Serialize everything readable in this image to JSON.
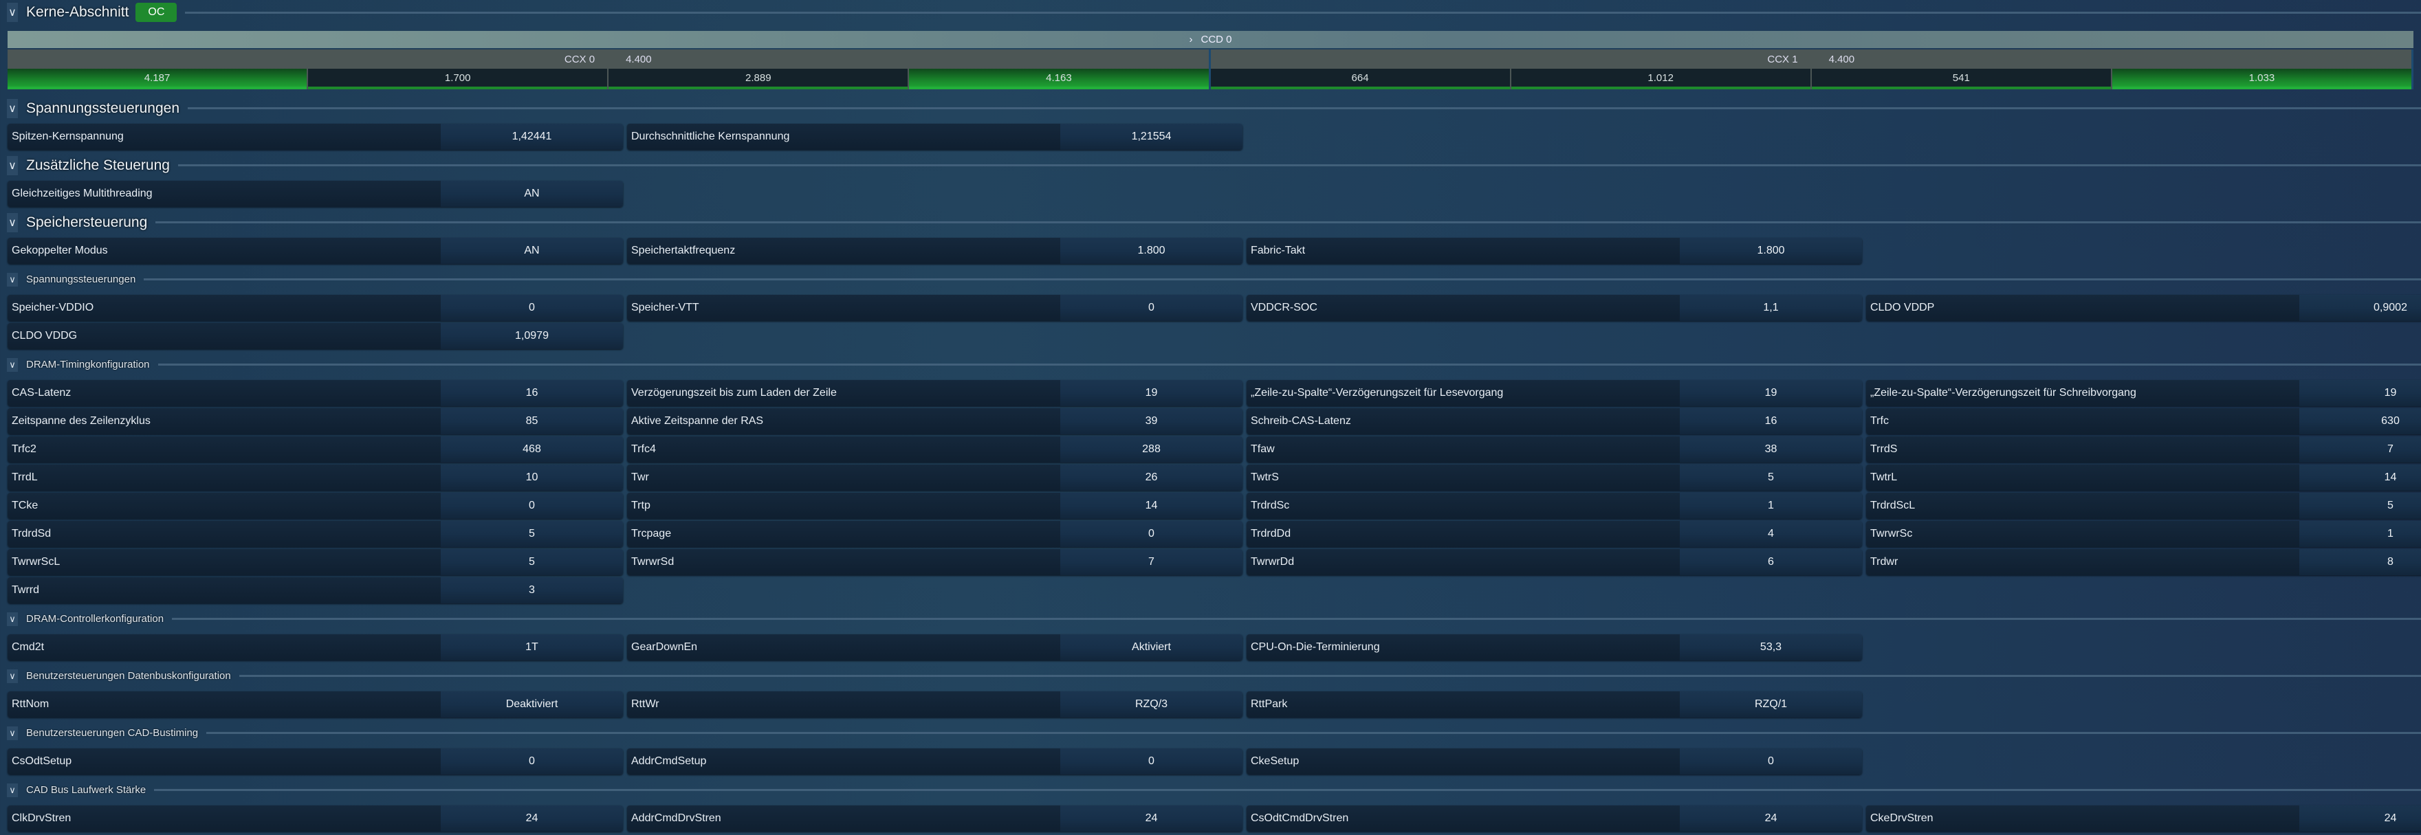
{
  "kerne": {
    "title": "Kerne-Abschnitt",
    "badge": "OC",
    "ccd": {
      "label": "CCD 0"
    },
    "ccx": [
      {
        "label": "CCX 0",
        "freq": "4.400",
        "cores": [
          {
            "value": "4.187",
            "highlight": true
          },
          {
            "value": "1.700",
            "highlight": false
          },
          {
            "value": "2.889",
            "highlight": false
          },
          {
            "value": "4.163",
            "highlight": true
          }
        ]
      },
      {
        "label": "CCX 1",
        "freq": "4.400",
        "cores": [
          {
            "value": "664",
            "highlight": false
          },
          {
            "value": "1.012",
            "highlight": false
          },
          {
            "value": "541",
            "highlight": false
          },
          {
            "value": "1.033",
            "highlight": true
          }
        ]
      }
    ]
  },
  "colors": {
    "accent_green": "#1f8a2e",
    "background": "#1f3d5a"
  },
  "sections": [
    {
      "title": "Spannungssteuerungen",
      "size": "big",
      "cells": [
        [
          "Spitzen-Kernspannung",
          "1,42441"
        ],
        [
          "Durchschnittliche Kernspannung",
          "1,21554"
        ]
      ]
    },
    {
      "title": "Zusätzliche Steuerung",
      "size": "big",
      "cells": [
        [
          "Gleichzeitiges Multithreading",
          "AN"
        ]
      ]
    },
    {
      "title": "Speichersteuerung",
      "size": "big",
      "cells": [
        [
          "Gekoppelter Modus",
          "AN"
        ],
        [
          "Speichertaktfrequenz",
          "1.800"
        ],
        [
          "Fabric-Takt",
          "1.800"
        ]
      ]
    },
    {
      "title": "Spannungssteuerungen",
      "size": "small",
      "cells": [
        [
          "Speicher-VDDIO",
          "0"
        ],
        [
          "Speicher-VTT",
          "0"
        ],
        [
          "VDDCR-SOC",
          "1,1"
        ],
        [
          "CLDO VDDP",
          "0,9002"
        ],
        [
          "CLDO VDDG",
          "1,0979"
        ]
      ]
    },
    {
      "title": "DRAM-Timingkonfiguration",
      "size": "small",
      "cells": [
        [
          "CAS-Latenz",
          "16"
        ],
        [
          "Verzögerungszeit bis zum Laden der Zeile",
          "19"
        ],
        [
          "„Zeile-zu-Spalte“-Verzögerungszeit für Lesevorgang",
          "19"
        ],
        [
          "„Zeile-zu-Spalte“-Verzögerungszeit für Schreibvorgang",
          "19"
        ],
        [
          "Zeitspanne des Zeilenzyklus",
          "85"
        ],
        [
          "Aktive Zeitspanne der RAS",
          "39"
        ],
        [
          "Schreib-CAS-Latenz",
          "16"
        ],
        [
          "Trfc",
          "630"
        ],
        [
          "Trfc2",
          "468"
        ],
        [
          "Trfc4",
          "288"
        ],
        [
          "Tfaw",
          "38"
        ],
        [
          "TrrdS",
          "7"
        ],
        [
          "TrrdL",
          "10"
        ],
        [
          "Twr",
          "26"
        ],
        [
          "TwtrS",
          "5"
        ],
        [
          "TwtrL",
          "14"
        ],
        [
          "TCke",
          "0"
        ],
        [
          "Trtp",
          "14"
        ],
        [
          "TrdrdSc",
          "1"
        ],
        [
          "TrdrdScL",
          "5"
        ],
        [
          "TrdrdSd",
          "5"
        ],
        [
          "Trcpage",
          "0"
        ],
        [
          "TrdrdDd",
          "4"
        ],
        [
          "TwrwrSc",
          "1"
        ],
        [
          "TwrwrScL",
          "5"
        ],
        [
          "TwrwrSd",
          "7"
        ],
        [
          "TwrwrDd",
          "6"
        ],
        [
          "Trdwr",
          "8"
        ],
        [
          "Twrrd",
          "3"
        ]
      ]
    },
    {
      "title": "DRAM-Controllerkonfiguration",
      "size": "small",
      "cells": [
        [
          "Cmd2t",
          "1T"
        ],
        [
          "GearDownEn",
          "Aktiviert"
        ],
        [
          "CPU-On-Die-Terminierung",
          "53,3"
        ]
      ]
    },
    {
      "title": "Benutzersteuerungen Datenbuskonfiguration",
      "size": "small",
      "cells": [
        [
          "RttNom",
          "Deaktiviert"
        ],
        [
          "RttWr",
          "RZQ/3"
        ],
        [
          "RttPark",
          "RZQ/1"
        ]
      ]
    },
    {
      "title": "Benutzersteuerungen CAD-Bustiming",
      "size": "small",
      "cells": [
        [
          "CsOdtSetup",
          "0"
        ],
        [
          "AddrCmdSetup",
          "0"
        ],
        [
          "CkeSetup",
          "0"
        ]
      ]
    },
    {
      "title": "CAD Bus Laufwerk Stärke",
      "size": "small",
      "cells": [
        [
          "ClkDrvStren",
          "24"
        ],
        [
          "AddrCmdDrvStren",
          "24"
        ],
        [
          "CsOdtCmdDrvStren",
          "24"
        ],
        [
          "CkeDrvStren",
          "24"
        ]
      ]
    }
  ]
}
